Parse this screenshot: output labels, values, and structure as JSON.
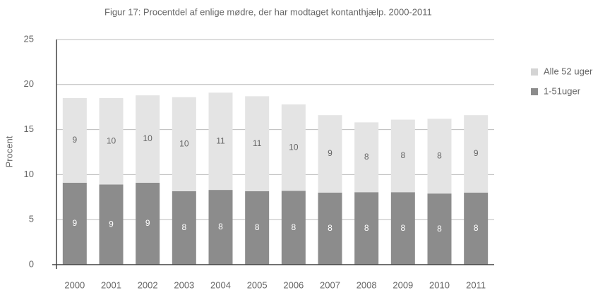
{
  "chart_data": {
    "type": "stacked_bar",
    "title": "Figur 17: Procentdel af enlige mødre, der har modtaget kontanthjælp. 2000-2011",
    "y_label": "Procent",
    "categories": [
      "2000",
      "2001",
      "2002",
      "2003",
      "2004",
      "2005",
      "2006",
      "2007",
      "2008",
      "2009",
      "2010",
      "2011"
    ],
    "series": [
      {
        "name": "1-51uger",
        "color": "#8c8c8c",
        "values": [
          9.1,
          8.9,
          9.1,
          8.15,
          8.3,
          8.15,
          8.2,
          8.0,
          8.05,
          8.05,
          7.9,
          8.0
        ],
        "value_labels": [
          9,
          9,
          9,
          8,
          8,
          8,
          8,
          8,
          8,
          8,
          8,
          8
        ]
      },
      {
        "name": "Alle 52 uger",
        "color": "#e4e4e4",
        "values": [
          9.4,
          9.6,
          9.7,
          10.45,
          10.8,
          10.55,
          9.6,
          8.6,
          7.75,
          8.05,
          8.3,
          8.6
        ],
        "value_labels": [
          9,
          10,
          10,
          10,
          11,
          11,
          10,
          9,
          8,
          8,
          8,
          9
        ]
      }
    ],
    "ylim": [
      0,
      25
    ],
    "yticks": [
      0,
      5,
      10,
      15,
      20,
      25
    ],
    "grid": true,
    "legend": "right"
  }
}
